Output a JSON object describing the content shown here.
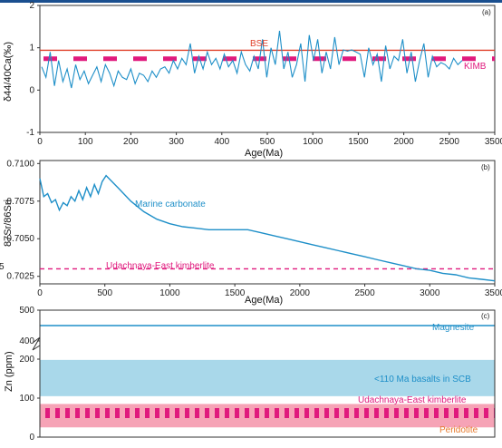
{
  "chart_data": [
    {
      "type": "line",
      "panel_label": "(a)",
      "xlabel": "Age(Ma)",
      "ylabel": "δ44/40Ca(‰)",
      "xlim": [
        0,
        3500
      ],
      "ylim": [
        -1,
        2
      ],
      "xticks": [
        "0",
        "100",
        "200",
        "300",
        "400",
        "500",
        "1000",
        "1500",
        "2000",
        "2500",
        "3500"
      ],
      "yticks": [
        "-1",
        "0",
        "1",
        "2"
      ],
      "annotations": [
        {
          "text": "BSE",
          "color": "#e0402a"
        },
        {
          "text": "KIMB",
          "color": "#e0197d"
        }
      ],
      "reference_lines": [
        {
          "name": "BSE",
          "y": 0.94,
          "style": "solid",
          "color": "#e0402a"
        },
        {
          "name": "KIMB",
          "y": 0.74,
          "style": "dashed",
          "color": "#e0197d"
        }
      ],
      "series": [
        {
          "name": "",
          "color": "#1e8fc8",
          "x": [
            0,
            20,
            40,
            60,
            80,
            100,
            120,
            140,
            160,
            180,
            200,
            220,
            240,
            260,
            280,
            300,
            320,
            340,
            360,
            380,
            400,
            420,
            440,
            460,
            480,
            500,
            520,
            540,
            560,
            580,
            600,
            640,
            680,
            720,
            760,
            800,
            860,
            900,
            940,
            980,
            1020,
            1060,
            1100,
            1140,
            1180,
            1220,
            1260,
            1300,
            1340,
            1380,
            1420,
            1460,
            1500,
            1540,
            1580,
            1620,
            1660,
            1700,
            1740,
            1780,
            1820,
            1860,
            1900,
            1940,
            1980,
            2020,
            2060,
            2100,
            2140,
            2180,
            2220,
            2260,
            2300,
            2340,
            2380,
            2420,
            2460,
            2500,
            2540,
            2580,
            2620,
            2660,
            2700,
            2740,
            2780,
            2820,
            2860,
            2900,
            2940,
            2980,
            3020,
            3060,
            3100,
            3140,
            3180,
            3220,
            3260,
            3300,
            3340,
            3380
          ],
          "y": [
            0.55,
            0.3,
            0.9,
            0.1,
            0.7,
            0.2,
            0.5,
            0.05,
            0.6,
            0.25,
            0.45,
            0.15,
            0.35,
            0.55,
            0.2,
            0.6,
            0.4,
            0.1,
            0.45,
            0.3,
            0.25,
            0.5,
            0.15,
            0.4,
            0.35,
            0.2,
            0.45,
            0.3,
            0.5,
            0.55,
            0.4,
            0.7,
            0.5,
            0.75,
            0.6,
            1.1,
            0.4,
            0.8,
            0.5,
            0.9,
            0.6,
            0.75,
            0.5,
            0.85,
            0.55,
            0.7,
            0.4,
            0.9,
            0.6,
            0.45,
            0.8,
            0.5,
            1.2,
            0.3,
            1.0,
            0.6,
            1.4,
            0.5,
            0.9,
            0.3,
            0.6,
            1.1,
            0.2,
            1.3,
            0.7,
            1.2,
            0.4,
            0.9,
            0.5,
            1.25,
            0.6,
            0.95,
            0.92,
            0.95,
            0.9,
            0.85,
            0.3,
            1.0,
            0.6,
            0.85,
            0.2,
            1.05,
            0.5,
            0.8,
            0.7,
            1.2,
            0.4,
            0.9,
            0.2,
            0.7,
            1.1,
            0.3,
            0.8,
            0.55,
            0.65,
            0.6,
            0.5,
            0.75,
            0.6,
            0.7
          ]
        }
      ]
    },
    {
      "type": "line",
      "panel_label": "(b)",
      "xlabel": "Age(Ma)",
      "ylabel": "87Sr/86Sri",
      "xlim": [
        0,
        3500
      ],
      "ylim": [
        0.702,
        0.7102
      ],
      "xticks": [
        "0",
        "500",
        "1000",
        "1500",
        "2000",
        "2500",
        "3000",
        "3500"
      ],
      "yticks": [
        "0.7025",
        "0.7050",
        "0.7075",
        "0.7100"
      ],
      "annotations": [
        {
          "text": "Marine carbonate",
          "color": "#1e8fc8"
        },
        {
          "text": "Udachnaya-East kimberlite",
          "color": "#e0197d"
        }
      ],
      "reference_lines": [
        {
          "name": "Udachnaya-East kimberlite",
          "y": 0.703,
          "style": "dashed",
          "color": "#e0197d"
        }
      ],
      "series": [
        {
          "name": "Marine carbonate",
          "color": "#1e8fc8",
          "x": [
            0,
            30,
            60,
            90,
            120,
            150,
            180,
            210,
            240,
            270,
            300,
            330,
            360,
            390,
            420,
            450,
            480,
            510,
            600,
            700,
            800,
            900,
            1000,
            1100,
            1200,
            1300,
            1400,
            1500,
            1600,
            1700,
            1800,
            1900,
            2000,
            2100,
            2200,
            2300,
            2400,
            2500,
            2600,
            2700,
            2800,
            2900,
            3000,
            3100,
            3200,
            3300,
            3400,
            3500
          ],
          "y": [
            0.709,
            0.7078,
            0.708,
            0.7074,
            0.7076,
            0.7069,
            0.7074,
            0.7072,
            0.7078,
            0.7075,
            0.7082,
            0.7076,
            0.7084,
            0.7078,
            0.7086,
            0.708,
            0.7088,
            0.7092,
            0.7084,
            0.7075,
            0.7068,
            0.7063,
            0.706,
            0.7058,
            0.7057,
            0.7056,
            0.7056,
            0.7056,
            0.7056,
            0.7054,
            0.7052,
            0.705,
            0.7048,
            0.7046,
            0.7044,
            0.7042,
            0.704,
            0.7038,
            0.7036,
            0.7034,
            0.7032,
            0.703,
            0.7029,
            0.7027,
            0.7026,
            0.7024,
            0.7023,
            0.7022
          ]
        }
      ]
    },
    {
      "type": "range",
      "panel_label": "(c)",
      "ylabel": "Zn (ppm)",
      "ylim": [
        0,
        500
      ],
      "axis_break": true,
      "yticks": [
        "0",
        "100",
        "200",
        "400",
        "500"
      ],
      "bands": [
        {
          "name": "Magnesite",
          "type": "line",
          "value": 450,
          "color": "#1e8fc8"
        },
        {
          "name": "<110 Ma basalts in SCB",
          "low": 105,
          "high": 198,
          "color": "#a9d8ea"
        },
        {
          "name": "Udachnaya-East kimberlite",
          "low": 45,
          "high": 78,
          "color": "#e0197d",
          "style": "dashed-thick"
        },
        {
          "name": "Peridotite",
          "low": 25,
          "high": 85,
          "color": "#f6a3b6"
        }
      ],
      "label_colors": {
        "Magnesite": "#1e8fc8",
        "<110 Ma basalts in SCB": "#1e8fc8",
        "Udachnaya-East kimberlite": "#e0197d",
        "Peridotite": "#e67a2e"
      }
    }
  ],
  "page_markers": {
    "left_fragment": "5"
  }
}
